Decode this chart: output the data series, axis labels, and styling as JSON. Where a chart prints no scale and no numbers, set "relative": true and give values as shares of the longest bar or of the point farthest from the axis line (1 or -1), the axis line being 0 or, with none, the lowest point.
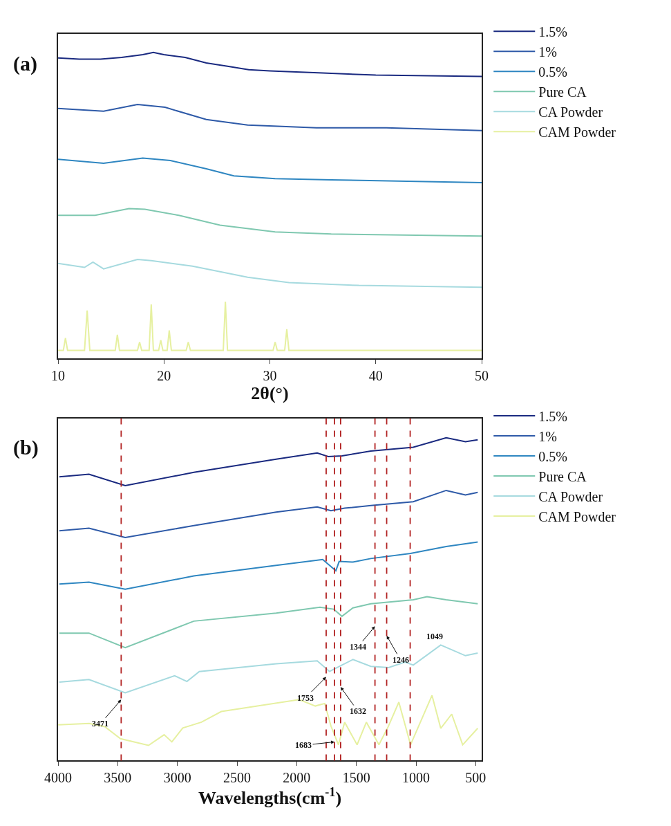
{
  "chart_data": [
    {
      "type": "line",
      "title": "(a)",
      "xlabel": "2θ(°)",
      "relative": true,
      "xlim": [
        10,
        50
      ],
      "xticks": [
        10,
        20,
        30,
        40,
        50
      ],
      "legend": "top right",
      "series": [
        {
          "name": "1.5%",
          "color": "#1a2a80",
          "x": [
            10,
            12,
            14,
            16,
            18,
            19,
            20,
            22,
            24,
            26,
            28,
            30,
            35,
            40,
            45,
            50
          ],
          "values": [
            0.982,
            0.978,
            0.978,
            0.984,
            0.993,
            1.0,
            0.993,
            0.984,
            0.966,
            0.955,
            0.944,
            0.94,
            0.933,
            0.926,
            0.924,
            0.922
          ]
        },
        {
          "name": "1%",
          "color": "#2e5aa8",
          "x": [
            10,
            14.3,
            17.5,
            20.1,
            24,
            27.9,
            34.4,
            41,
            50
          ],
          "values": [
            0.817,
            0.808,
            0.83,
            0.821,
            0.781,
            0.763,
            0.754,
            0.754,
            0.745
          ]
        },
        {
          "name": "0.5%",
          "color": "#2e86c1",
          "x": [
            10,
            14.3,
            18,
            20.6,
            24,
            26.6,
            30.5,
            35.8,
            50
          ],
          "values": [
            0.651,
            0.638,
            0.655,
            0.647,
            0.62,
            0.597,
            0.588,
            0.584,
            0.575
          ]
        },
        {
          "name": "Pure CA",
          "color": "#7fc8b0",
          "x": [
            10,
            13.5,
            16.7,
            18.2,
            21.4,
            25.3,
            30.5,
            35.8,
            50
          ],
          "values": [
            0.468,
            0.468,
            0.49,
            0.488,
            0.468,
            0.436,
            0.414,
            0.407,
            0.4
          ]
        },
        {
          "name": "CA Powder",
          "color": "#a6dadf",
          "x": [
            10,
            12.5,
            13.3,
            14.3,
            17.5,
            18.8,
            22.7,
            27.9,
            31.8,
            38.4,
            50
          ],
          "values": [
            0.311,
            0.298,
            0.315,
            0.293,
            0.324,
            0.32,
            0.302,
            0.266,
            0.248,
            0.239,
            0.233
          ]
        },
        {
          "name": "CAM Powder",
          "color": "#e6f0a0",
          "x": [
            10,
            10.5,
            10.7,
            10.9,
            12.5,
            12.75,
            13.0,
            15.4,
            15.6,
            15.8,
            17.5,
            17.7,
            17.9,
            18.6,
            18.8,
            19.0,
            19.5,
            19.7,
            19.9,
            20.3,
            20.5,
            20.7,
            22.1,
            22.3,
            22.5,
            25.6,
            25.8,
            26.0,
            30.3,
            30.5,
            30.7,
            31.4,
            31.6,
            31.8,
            50
          ],
          "values": [
            0.027,
            0.027,
            0.067,
            0.027,
            0.027,
            0.157,
            0.027,
            0.027,
            0.078,
            0.027,
            0.027,
            0.054,
            0.027,
            0.027,
            0.177,
            0.027,
            0.027,
            0.06,
            0.027,
            0.027,
            0.092,
            0.027,
            0.027,
            0.054,
            0.027,
            0.027,
            0.186,
            0.027,
            0.027,
            0.054,
            0.027,
            0.027,
            0.096,
            0.027,
            0.027
          ]
        }
      ]
    },
    {
      "type": "line",
      "title": "(b)",
      "xlabel": "Wavelengths(cm$^{-1}$)",
      "relative": true,
      "xlim": [
        4000,
        450
      ],
      "xticks": [
        4000,
        3500,
        3000,
        2500,
        2000,
        1500,
        1000,
        500
      ],
      "legend": "top right",
      "series": [
        {
          "name": "1.5%",
          "color": "#1a2a80",
          "x": [
            3989,
            3741,
            3437,
            2862,
            2172,
            1828,
            1736,
            1621,
            1379,
            1023,
            747,
            586,
            483
          ],
          "values": [
            0.879,
            0.887,
            0.852,
            0.893,
            0.934,
            0.953,
            0.942,
            0.944,
            0.959,
            0.971,
            1.0,
            0.988,
            0.994
          ]
        },
        {
          "name": "1%",
          "color": "#2e5aa8",
          "x": [
            3989,
            3741,
            3437,
            2862,
            2172,
            1828,
            1713,
            1598,
            1379,
            1023,
            747,
            586,
            483
          ],
          "values": [
            0.712,
            0.72,
            0.691,
            0.728,
            0.77,
            0.786,
            0.774,
            0.782,
            0.79,
            0.802,
            0.837,
            0.823,
            0.831
          ]
        },
        {
          "name": "0.5%",
          "color": "#2e86c1",
          "x": [
            3989,
            3741,
            3437,
            2862,
            2172,
            1782,
            1672,
            1644,
            1529,
            1379,
            1046,
            747,
            483
          ],
          "values": [
            0.547,
            0.553,
            0.531,
            0.572,
            0.605,
            0.623,
            0.588,
            0.617,
            0.615,
            0.626,
            0.642,
            0.663,
            0.677
          ]
        },
        {
          "name": "Pure CA",
          "color": "#7fc8b0",
          "x": [
            3989,
            3741,
            3437,
            2862,
            2172,
            1805,
            1690,
            1621,
            1529,
            1379,
            1023,
            908,
            747,
            483
          ],
          "values": [
            0.395,
            0.395,
            0.35,
            0.432,
            0.457,
            0.475,
            0.469,
            0.447,
            0.473,
            0.486,
            0.498,
            0.508,
            0.498,
            0.486
          ]
        },
        {
          "name": "CA Powder",
          "color": "#a6dadf",
          "x": [
            3989,
            3741,
            3437,
            3023,
            2920,
            2816,
            2172,
            1828,
            1725,
            1621,
            1529,
            1379,
            1229,
            1092,
            1023,
            793,
            586,
            483
          ],
          "values": [
            0.243,
            0.251,
            0.21,
            0.263,
            0.245,
            0.276,
            0.3,
            0.309,
            0.276,
            0.296,
            0.313,
            0.292,
            0.288,
            0.305,
            0.296,
            0.358,
            0.325,
            0.333
          ]
        },
        {
          "name": "CAM Powder",
          "color": "#e6f0a0",
          "x": [
            4000,
            3739,
            3608,
            3477,
            3242,
            3111,
            3046,
            2955,
            2798,
            2632,
            1979,
            1844,
            1765,
            1713,
            1650,
            1598,
            1494,
            1416,
            1311,
            1233,
            1144,
            1046,
            866,
            793,
            701,
            609,
            483
          ],
          "values": [
            0.111,
            0.115,
            0.105,
            0.068,
            0.047,
            0.08,
            0.058,
            0.101,
            0.119,
            0.152,
            0.189,
            0.169,
            0.177,
            0.107,
            0.049,
            0.119,
            0.049,
            0.119,
            0.049,
            0.105,
            0.181,
            0.049,
            0.202,
            0.1,
            0.144,
            0.049,
            0.1
          ]
        }
      ],
      "ref_lines": [
        {
          "axis": "x",
          "value": 3471,
          "color": "#b22222",
          "line_style": "dashed"
        },
        {
          "axis": "x",
          "value": 1753,
          "color": "#b22222",
          "line_style": "dashed"
        },
        {
          "axis": "x",
          "value": 1683,
          "color": "#b22222",
          "line_style": "dashed"
        },
        {
          "axis": "x",
          "value": 1632,
          "color": "#b22222",
          "line_style": "dashed"
        },
        {
          "axis": "x",
          "value": 1344,
          "color": "#b22222",
          "line_style": "dashed"
        },
        {
          "axis": "x",
          "value": 1246,
          "color": "#b22222",
          "line_style": "dashed"
        },
        {
          "axis": "x",
          "value": 1049,
          "color": "#b22222",
          "line_style": "dashed"
        }
      ],
      "annotations": [
        {
          "text": "3471",
          "x": 3471,
          "y": 0.189
        },
        {
          "text": "1753",
          "x": 1753,
          "y": 0.259
        },
        {
          "text": "1683",
          "x": 1683,
          "y": 0.058
        },
        {
          "text": "1632",
          "x": 1632,
          "y": 0.228
        },
        {
          "text": "1344",
          "x": 1344,
          "y": 0.416
        },
        {
          "text": "1246",
          "x": 1246,
          "y": 0.387
        },
        {
          "text": "1049",
          "x": 1049,
          "y": 0.449
        }
      ]
    }
  ]
}
